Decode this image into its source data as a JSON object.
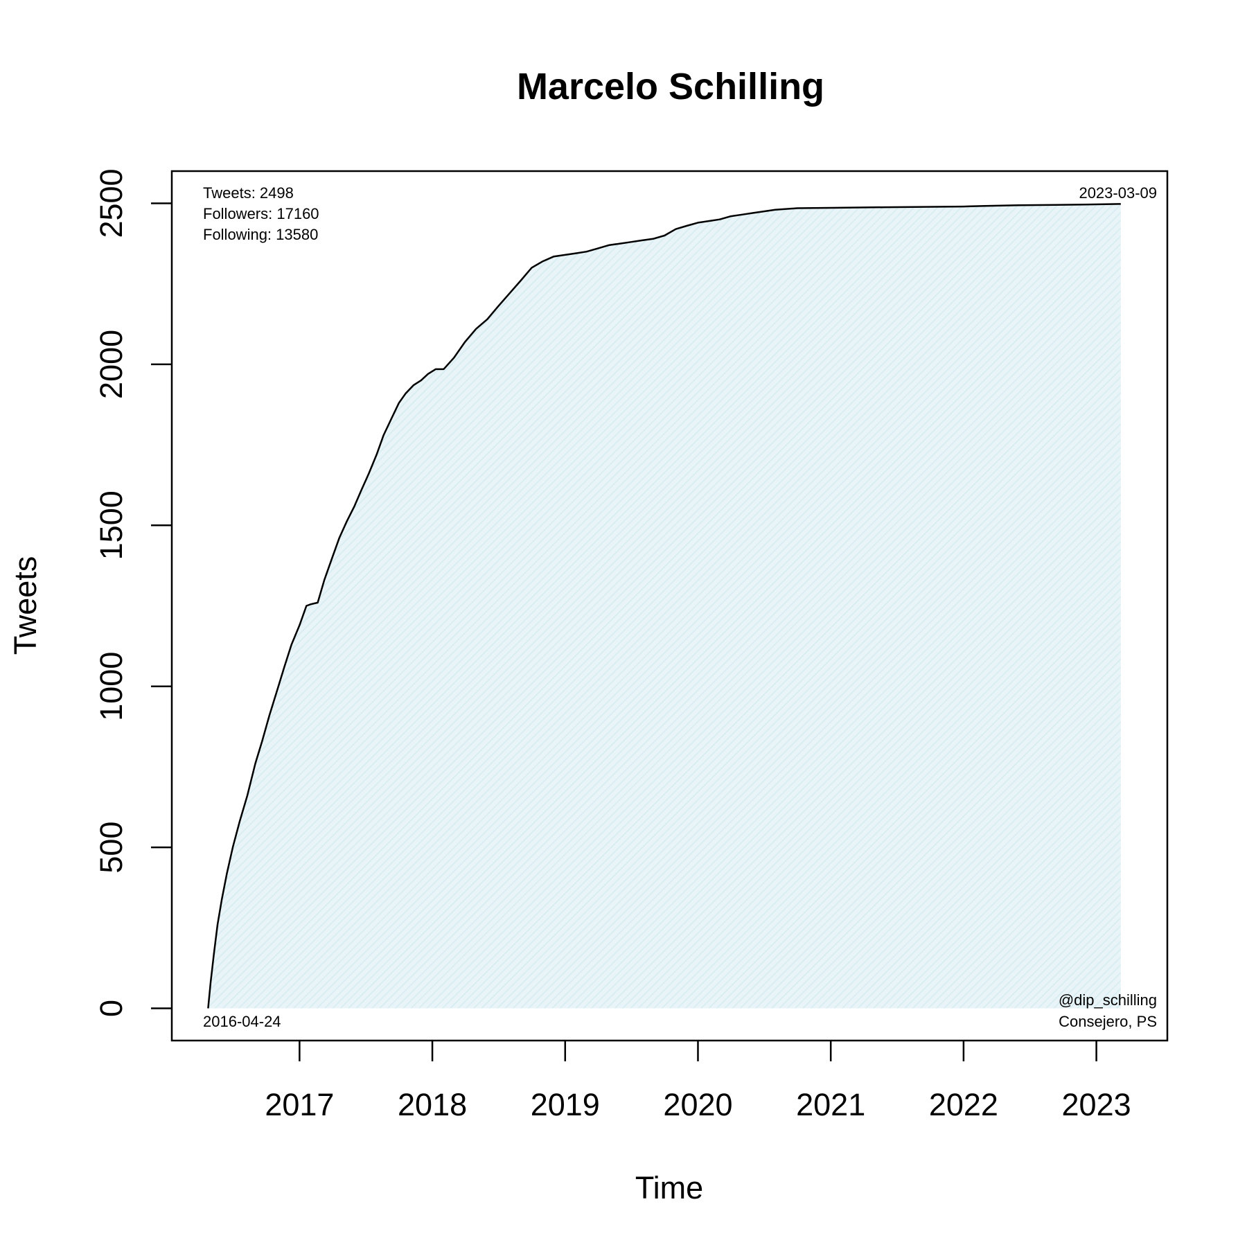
{
  "colors": {
    "line": "#000000",
    "fill": "#e8f4f7",
    "hatch": "#d6ecf1",
    "frame": "#000000"
  },
  "chart_data": {
    "type": "area",
    "title": "Marcelo Schilling",
    "xlabel": "Time",
    "ylabel": "Tweets",
    "xlim": [
      "2016-01-15",
      "2023-07-15"
    ],
    "ylim": [
      -100,
      2600
    ],
    "grid": false,
    "legend": "none",
    "x_ticks": [
      "2017",
      "2018",
      "2019",
      "2020",
      "2021",
      "2022",
      "2023"
    ],
    "y_ticks": [
      "0",
      "500",
      "1000",
      "1500",
      "2000",
      "2500"
    ],
    "annotations": {
      "stats": [
        "Tweets: 2498",
        "Followers: 17160",
        "Following: 13580"
      ],
      "start_date": "2016-04-24",
      "end_date": "2023-03-09",
      "handle": "@dip_schilling",
      "role": "Consejero, PS"
    },
    "series": [
      {
        "x": [
          "2016-04-24",
          "2016-05-01",
          "2016-05-10",
          "2016-05-20",
          "2016-06-01",
          "2016-06-15",
          "2016-07-01",
          "2016-07-20",
          "2016-08-10",
          "2016-09-01",
          "2016-09-20",
          "2016-10-10",
          "2016-11-01",
          "2016-11-20",
          "2016-12-10",
          "2017-01-01",
          "2017-01-20",
          "2017-02-01",
          "2017-02-20",
          "2017-03-10",
          "2017-04-01",
          "2017-04-20",
          "2017-05-10",
          "2017-06-01",
          "2017-06-20",
          "2017-07-10",
          "2017-08-01",
          "2017-08-20",
          "2017-09-10",
          "2017-10-01",
          "2017-10-20",
          "2017-11-10",
          "2017-12-01",
          "2017-12-20",
          "2018-01-10",
          "2018-02-01",
          "2018-03-01",
          "2018-04-01",
          "2018-05-01",
          "2018-06-01",
          "2018-07-01",
          "2018-08-01",
          "2018-09-01",
          "2018-10-01",
          "2018-11-01",
          "2018-12-01",
          "2019-01-01",
          "2019-02-01",
          "2019-03-01",
          "2019-04-01",
          "2019-05-01",
          "2019-06-01",
          "2019-07-01",
          "2019-08-01",
          "2019-09-01",
          "2019-10-01",
          "2019-11-01",
          "2019-12-01",
          "2020-01-01",
          "2020-02-01",
          "2020-03-01",
          "2020-04-01",
          "2020-05-01",
          "2020-06-01",
          "2020-07-01",
          "2020-08-01",
          "2020-10-01",
          "2021-01-01",
          "2021-06-01",
          "2022-01-01",
          "2022-03-01",
          "2022-06-01",
          "2022-12-01",
          "2023-03-09"
        ],
        "values": [
          0,
          80,
          170,
          260,
          340,
          420,
          500,
          580,
          660,
          760,
          830,
          910,
          990,
          1060,
          1130,
          1190,
          1250,
          1255,
          1260,
          1330,
          1400,
          1460,
          1510,
          1560,
          1610,
          1660,
          1720,
          1780,
          1830,
          1880,
          1910,
          1935,
          1950,
          1970,
          1985,
          1985,
          2020,
          2070,
          2110,
          2140,
          2180,
          2220,
          2260,
          2300,
          2320,
          2335,
          2340,
          2345,
          2350,
          2360,
          2370,
          2375,
          2380,
          2385,
          2390,
          2400,
          2420,
          2430,
          2440,
          2445,
          2450,
          2460,
          2465,
          2470,
          2475,
          2480,
          2485,
          2486,
          2488,
          2490,
          2492,
          2494,
          2496,
          2498
        ]
      }
    ]
  }
}
